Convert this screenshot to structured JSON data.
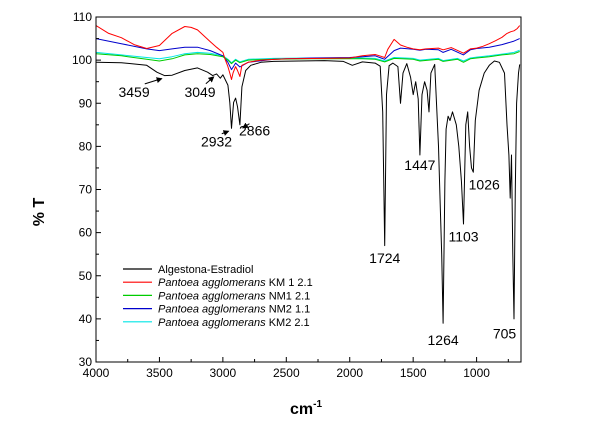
{
  "chart_data": {
    "type": "line",
    "title": "",
    "xlabel": "cm",
    "xlabel_sup": "-1",
    "ylabel": "% T",
    "xlim": [
      4000,
      650
    ],
    "ylim": [
      30,
      110
    ],
    "x_reversed": true,
    "x_ticks": [
      4000,
      3500,
      3000,
      2500,
      2000,
      1500,
      1000
    ],
    "y_ticks": [
      30,
      40,
      50,
      60,
      70,
      80,
      90,
      100,
      110
    ],
    "grid": false,
    "legend_position": "bottom-left",
    "series": [
      {
        "name": "Algestona-Estradiol",
        "color": "#000000",
        "x": [
          4000,
          3800,
          3600,
          3520,
          3460,
          3400,
          3300,
          3200,
          3120,
          3080,
          3049,
          3020,
          3000,
          2980,
          2960,
          2945,
          2932,
          2915,
          2900,
          2885,
          2866,
          2850,
          2820,
          2780,
          2700,
          2600,
          2400,
          2200,
          2050,
          1980,
          1900,
          1800,
          1760,
          1740,
          1724,
          1710,
          1690,
          1660,
          1620,
          1600,
          1580,
          1550,
          1520,
          1500,
          1480,
          1460,
          1447,
          1430,
          1410,
          1390,
          1375,
          1360,
          1330,
          1300,
          1285,
          1275,
          1264,
          1250,
          1240,
          1225,
          1210,
          1190,
          1160,
          1140,
          1120,
          1103,
          1085,
          1070,
          1055,
          1040,
          1026,
          1010,
          980,
          940,
          900,
          860,
          820,
          780,
          760,
          745,
          735,
          725,
          715,
          705,
          695,
          685,
          670,
          660
        ],
        "y": [
          99.5,
          99.4,
          98.8,
          97.2,
          96.4,
          96.5,
          97.6,
          98.2,
          97.2,
          96.4,
          96.8,
          95.8,
          96.6,
          95.4,
          94.2,
          90.2,
          84.2,
          90.2,
          91.2,
          89.2,
          85.0,
          93.8,
          97.6,
          98.8,
          99.5,
          99.7,
          99.8,
          99.9,
          99.7,
          98.8,
          99.6,
          99.3,
          98.6,
          88.0,
          57.0,
          92.0,
          98.7,
          99.3,
          98.5,
          90.0,
          97.0,
          99.2,
          96.0,
          92.0,
          95.0,
          91.0,
          78.0,
          92.0,
          95.0,
          93.0,
          88.0,
          97.0,
          99.0,
          80.0,
          65.0,
          55.0,
          39.0,
          72.0,
          84.0,
          87.0,
          86.0,
          88.0,
          85.0,
          80.0,
          72.0,
          62.0,
          85.0,
          88.0,
          80.0,
          75.0,
          74.0,
          86.0,
          93.0,
          97.0,
          98.8,
          99.8,
          99.5,
          97.0,
          85.0,
          78.0,
          68.0,
          78.0,
          55.0,
          40.0,
          70.0,
          90.0,
          97.0,
          99.0
        ]
      },
      {
        "name": "KM 1 2.1",
        "color": "#ff0000",
        "x": [
          4000,
          3900,
          3800,
          3700,
          3600,
          3500,
          3400,
          3300,
          3250,
          3200,
          3100,
          3050,
          3000,
          2980,
          2960,
          2945,
          2932,
          2920,
          2900,
          2885,
          2866,
          2850,
          2800,
          2700,
          2500,
          2200,
          2000,
          1900,
          1800,
          1724,
          1700,
          1650,
          1600,
          1550,
          1500,
          1447,
          1400,
          1300,
          1264,
          1200,
          1103,
          1050,
          1000,
          950,
          900,
          850,
          800,
          760,
          730,
          705,
          680,
          660
        ],
        "y": [
          108.0,
          106.2,
          105.2,
          103.6,
          102.7,
          103.4,
          106.2,
          107.8,
          107.6,
          107.0,
          104.3,
          103.0,
          101.8,
          100.0,
          98.5,
          97.0,
          95.5,
          97.0,
          98.5,
          97.6,
          96.2,
          98.8,
          99.5,
          100.0,
          100.3,
          100.4,
          100.5,
          101.0,
          101.3,
          100.6,
          102.5,
          104.8,
          103.5,
          103.0,
          102.6,
          102.4,
          102.6,
          102.8,
          102.4,
          102.9,
          101.6,
          102.6,
          102.8,
          103.2,
          103.8,
          104.5,
          105.3,
          106.2,
          106.6,
          106.8,
          107.3,
          108.0
        ]
      },
      {
        "name": "NM1 2.1",
        "color": "#00cc00",
        "x": [
          4000,
          3800,
          3600,
          3500,
          3400,
          3300,
          3200,
          3100,
          3000,
          2960,
          2932,
          2900,
          2866,
          2800,
          2600,
          2300,
          2000,
          1900,
          1800,
          1724,
          1650,
          1500,
          1447,
          1300,
          1264,
          1150,
          1103,
          1050,
          1000,
          900,
          800,
          705,
          660
        ],
        "y": [
          101.5,
          101.0,
          100.2,
          99.8,
          100.3,
          101.2,
          101.5,
          101.3,
          100.8,
          100.0,
          99.2,
          100.0,
          99.4,
          100.0,
          100.2,
          100.3,
          100.3,
          100.3,
          100.2,
          99.6,
          100.4,
          100.2,
          99.8,
          100.2,
          99.7,
          100.2,
          99.5,
          100.3,
          100.5,
          100.8,
          101.2,
          101.5,
          102.0
        ]
      },
      {
        "name": "NM2 1.1",
        "color": "#0000cc",
        "x": [
          4000,
          3800,
          3600,
          3500,
          3400,
          3300,
          3200,
          3100,
          3000,
          2960,
          2932,
          2900,
          2866,
          2800,
          2600,
          2300,
          2000,
          1900,
          1800,
          1724,
          1650,
          1600,
          1500,
          1447,
          1400,
          1300,
          1264,
          1200,
          1103,
          1050,
          1000,
          900,
          800,
          705,
          660
        ],
        "y": [
          105.0,
          103.8,
          102.6,
          102.2,
          102.6,
          103.0,
          103.0,
          102.2,
          101.0,
          99.5,
          97.8,
          99.3,
          98.4,
          99.5,
          100.2,
          100.5,
          100.6,
          100.8,
          101.0,
          100.2,
          102.2,
          102.8,
          102.5,
          102.3,
          102.5,
          102.4,
          101.8,
          102.5,
          101.2,
          102.4,
          102.7,
          103.0,
          103.6,
          104.4,
          105.0
        ]
      },
      {
        "name": "KM2 2.1",
        "color": "#00e5e5",
        "x": [
          4000,
          3800,
          3600,
          3500,
          3400,
          3300,
          3200,
          3100,
          3000,
          2960,
          2932,
          2900,
          2866,
          2800,
          2600,
          2300,
          2000,
          1900,
          1800,
          1724,
          1650,
          1500,
          1447,
          1300,
          1264,
          1150,
          1103,
          1050,
          1000,
          900,
          800,
          705,
          660
        ],
        "y": [
          101.8,
          101.2,
          100.6,
          100.3,
          100.8,
          101.5,
          101.8,
          101.6,
          101.0,
          100.2,
          99.4,
          100.2,
          99.6,
          100.2,
          100.4,
          100.5,
          100.5,
          100.5,
          100.4,
          99.8,
          100.6,
          100.4,
          100.0,
          100.4,
          99.9,
          100.4,
          99.8,
          100.5,
          100.7,
          101.0,
          101.4,
          101.8,
          102.3
        ]
      }
    ],
    "legend_entries": [
      {
        "italic": "",
        "text": "Algestona-Estradiol",
        "color": "#000000"
      },
      {
        "italic": "Pantoea agglomerans",
        "text": " KM 1 2.1",
        "color": "#ff0000"
      },
      {
        "italic": "Pantoea agglomerans",
        "text": " NM1 2.1",
        "color": "#00cc00"
      },
      {
        "italic": "Pantoea agglomerans",
        "text": " NM2 1.1",
        "color": "#0000cc"
      },
      {
        "italic": "Pantoea agglomerans",
        "text": " KM2 2.1",
        "color": "#00e5e5"
      }
    ],
    "annotations": [
      {
        "text": "3459",
        "x": 3459,
        "y": 96.4,
        "label_x": 3700,
        "label_y": 91.5,
        "arrow": true
      },
      {
        "text": "3049",
        "x": 3049,
        "y": 96.8,
        "label_x": 3180,
        "label_y": 91.5,
        "arrow": true
      },
      {
        "text": "2932",
        "x": 2932,
        "y": 84.2,
        "label_x": 3050,
        "label_y": 80.0,
        "arrow": true
      },
      {
        "text": "2866",
        "x": 2866,
        "y": 85.0,
        "label_x": 2750,
        "label_y": 82.5,
        "arrow": true
      },
      {
        "text": "1724",
        "x": 1724,
        "y": 57.0,
        "label_x": 1724,
        "label_y": 53.0,
        "arrow": false
      },
      {
        "text": "1447",
        "x": 1447,
        "y": 78.0,
        "label_x": 1447,
        "label_y": 74.5,
        "arrow": false
      },
      {
        "text": "1264",
        "x": 1264,
        "y": 39.0,
        "label_x": 1264,
        "label_y": 34.0,
        "arrow": false
      },
      {
        "text": "1103",
        "x": 1103,
        "y": 62.0,
        "label_x": 1103,
        "label_y": 58.0,
        "arrow": false
      },
      {
        "text": "1026",
        "x": 1026,
        "y": 74.0,
        "label_x": 940,
        "label_y": 70.0,
        "arrow": false
      },
      {
        "text": "705",
        "x": 705,
        "y": 40.0,
        "label_x": 780,
        "label_y": 35.5,
        "arrow": false
      }
    ]
  }
}
